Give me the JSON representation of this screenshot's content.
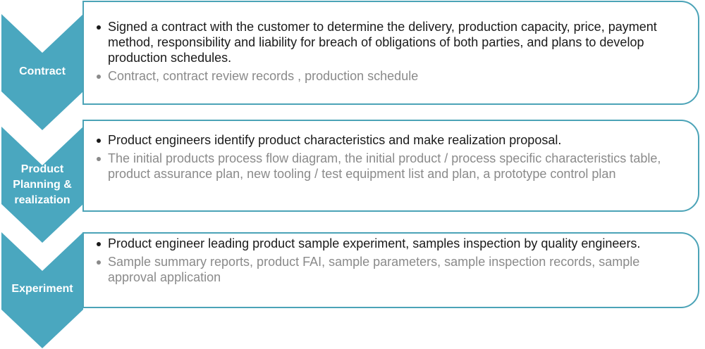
{
  "colors": {
    "accent": "#4aa7bf",
    "border": "#4ba3b7",
    "main_text": "#1a1a1a",
    "sub_text": "#8a8a8a"
  },
  "steps": [
    {
      "label": "Contract",
      "main": "Signed a contract with the customer to determine the delivery, production capacity, price, payment method, responsibility and liability for breach of obligations of both parties, and plans to develop production schedules.",
      "sub": "Contract, contract review records , production schedule"
    },
    {
      "label": "Product Planning & realization",
      "main": "Product engineers identify product characteristics and make realization proposal.",
      "sub": "The initial products process flow diagram, the initial product / process specific characteristics table, product assurance plan, new tooling / test equipment list and plan, a prototype control plan"
    },
    {
      "label": "Experiment",
      "main": "Product engineer leading product sample experiment, samples inspection by quality engineers.",
      "sub": "Sample summary reports, product FAI, sample parameters, sample inspection records, sample approval application"
    }
  ]
}
